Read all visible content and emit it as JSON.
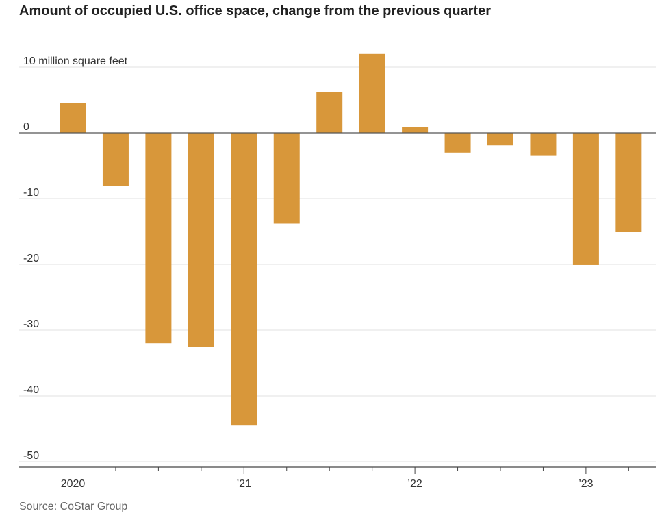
{
  "header": {
    "title": "Amount of occupied U.S. office space, change from the previous quarter"
  },
  "footer": {
    "source": "Source: CoStar Group"
  },
  "chart_data": {
    "type": "bar",
    "title": "Amount of occupied U.S. office space, change from the previous quarter",
    "ylabel": "10 million square feet",
    "categories": [
      "2020 Q1",
      "2020 Q2",
      "2020 Q3",
      "2020 Q4",
      "2021 Q1",
      "2021 Q2",
      "2021 Q3",
      "2021 Q4",
      "2022 Q1",
      "2022 Q2",
      "2022 Q3",
      "2022 Q4",
      "2023 Q1",
      "2023 Q2"
    ],
    "values": [
      4.5,
      -8.1,
      -32,
      -32.5,
      -44.5,
      -13.8,
      6.2,
      12,
      0.9,
      -3,
      -1.9,
      -3.5,
      -20.1,
      -15
    ],
    "ylim": [
      -50,
      12
    ],
    "yticks": [
      {
        "value": 10,
        "label": "10 million square feet"
      },
      {
        "value": 0,
        "label": "0"
      },
      {
        "value": -10,
        "label": "-10"
      },
      {
        "value": -20,
        "label": "-20"
      },
      {
        "value": -30,
        "label": "-30"
      },
      {
        "value": -40,
        "label": "-40"
      },
      {
        "value": -50,
        "label": "-50"
      }
    ],
    "xtick_labels": [
      {
        "index": 0,
        "label": "2020"
      },
      {
        "index": 4,
        "label": "’21"
      },
      {
        "index": 8,
        "label": "’22"
      },
      {
        "index": 12,
        "label": "’23"
      }
    ],
    "grid": true,
    "legend": "none",
    "colors": {
      "bar": "#d8973a",
      "grid": "#e1e1e1",
      "zero_line": "#555555",
      "axis": "#444444"
    }
  }
}
